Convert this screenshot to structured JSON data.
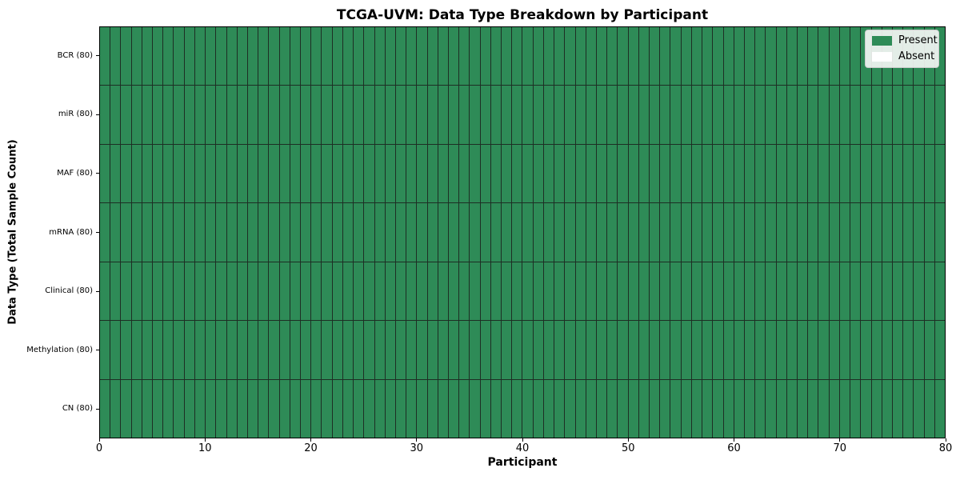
{
  "chart_data": {
    "type": "heatmap",
    "title": "TCGA-UVM: Data Type Breakdown by Participant",
    "xlabel": "Participant",
    "ylabel": "Data Type (Total Sample Count)",
    "xlim": [
      0,
      80
    ],
    "x_ticks": [
      0,
      10,
      20,
      30,
      40,
      50,
      60,
      70,
      80
    ],
    "n_participants": 80,
    "grid": "cell-borders",
    "all_cells_status": "present",
    "rows": [
      {
        "label": "BCR (80)",
        "data_type": "BCR",
        "total_samples": 80,
        "present_count": 80,
        "absent_count": 0
      },
      {
        "label": "miR (80)",
        "data_type": "miR",
        "total_samples": 80,
        "present_count": 80,
        "absent_count": 0
      },
      {
        "label": "MAF (80)",
        "data_type": "MAF",
        "total_samples": 80,
        "present_count": 80,
        "absent_count": 0
      },
      {
        "label": "mRNA (80)",
        "data_type": "mRNA",
        "total_samples": 80,
        "present_count": 80,
        "absent_count": 0
      },
      {
        "label": "Clinical (80)",
        "data_type": "Clinical",
        "total_samples": 80,
        "present_count": 80,
        "absent_count": 0
      },
      {
        "label": "Methylation (80)",
        "data_type": "Methylation",
        "total_samples": 80,
        "present_count": 80,
        "absent_count": 0
      },
      {
        "label": "CN (80)",
        "data_type": "CN",
        "total_samples": 80,
        "present_count": 80,
        "absent_count": 0
      }
    ],
    "legend": {
      "position": "upper right",
      "entries": [
        {
          "label": "Present",
          "color": "#2e8b57"
        },
        {
          "label": "Absent",
          "color": "#ffffff"
        }
      ]
    },
    "colors": {
      "present": "#2e8b57",
      "absent": "#ffffff",
      "cell_border": "#1d2e24",
      "spine": "#000000"
    }
  }
}
